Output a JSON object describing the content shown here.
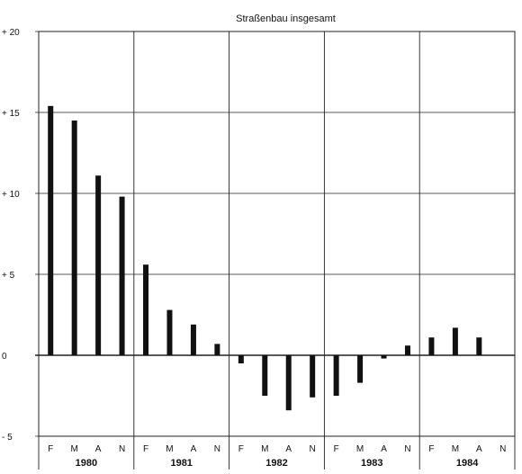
{
  "chart_data": {
    "type": "bar",
    "title": "Straßenbau insgesamt",
    "xlabel": "",
    "ylabel": "",
    "ylim": [
      -5,
      20
    ],
    "yticks": [
      {
        "value": 20,
        "label": "+ 20"
      },
      {
        "value": 15,
        "label": "+ 15"
      },
      {
        "value": 10,
        "label": "+ 10"
      },
      {
        "value": 5,
        "label": "+ 5"
      },
      {
        "value": 0,
        "label": "0"
      },
      {
        "value": -5,
        "label": "- 5"
      }
    ],
    "grid": true,
    "years": [
      {
        "label": "1980",
        "months": [
          "F",
          "M",
          "A",
          "N"
        ],
        "values": [
          15.4,
          14.5,
          11.1,
          9.8
        ]
      },
      {
        "label": "1981",
        "months": [
          "F",
          "M",
          "A",
          "N"
        ],
        "values": [
          5.6,
          2.8,
          1.9,
          0.7
        ]
      },
      {
        "label": "1982",
        "months": [
          "F",
          "M",
          "A",
          "N"
        ],
        "values": [
          -0.5,
          -2.5,
          -3.4,
          -2.6
        ]
      },
      {
        "label": "1983",
        "months": [
          "F",
          "M",
          "A",
          "N"
        ],
        "values": [
          -2.5,
          -1.7,
          -0.2,
          0.6
        ]
      },
      {
        "label": "1984",
        "months": [
          "F",
          "M",
          "A",
          "N"
        ],
        "values": [
          1.1,
          1.7,
          1.1,
          null
        ]
      }
    ],
    "colors": {
      "bar": "#111111",
      "grid": "#222222"
    }
  }
}
